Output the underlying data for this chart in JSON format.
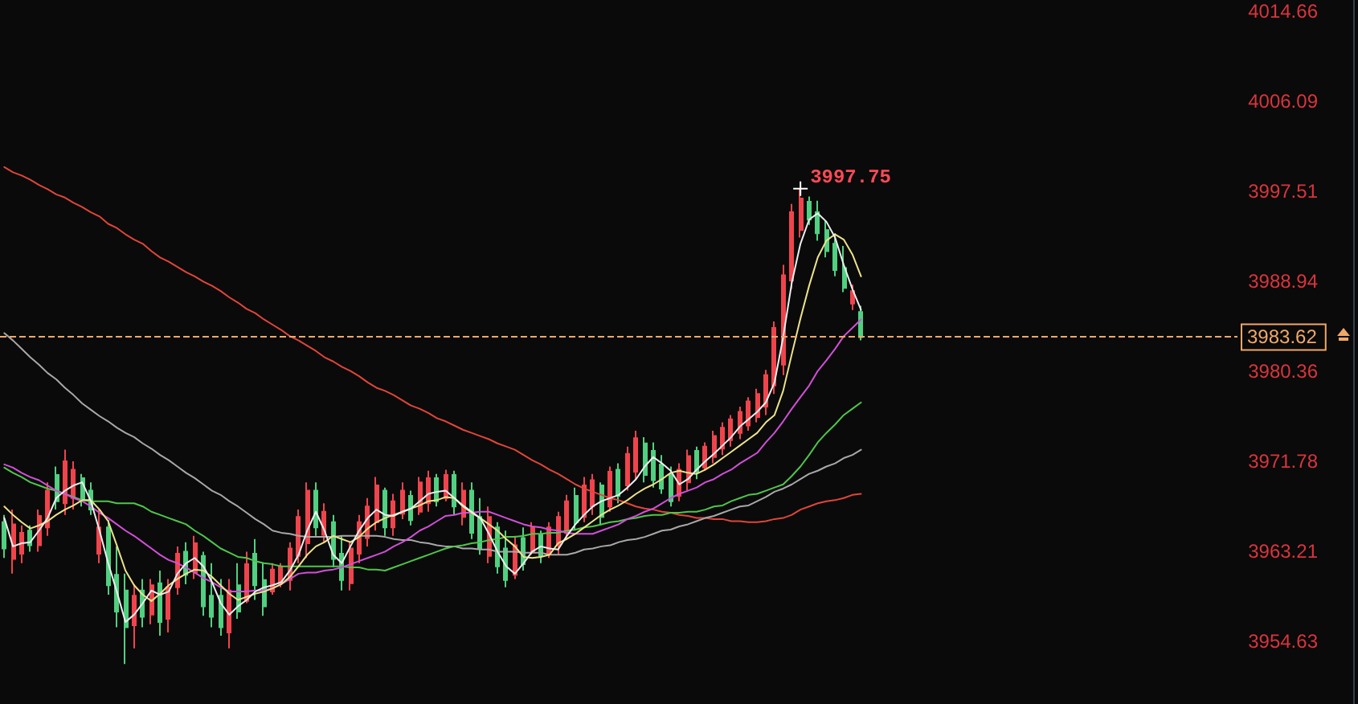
{
  "chart_data": {
    "type": "candlestick",
    "categories": [
      null,
      null,
      null,
      null,
      null,
      null,
      null,
      null,
      null,
      null,
      null,
      null,
      null,
      null,
      null,
      null,
      null,
      null,
      null,
      null,
      null,
      null,
      null,
      null,
      null,
      null,
      null,
      null,
      null,
      null,
      null,
      null,
      null,
      null,
      null,
      null,
      null,
      null,
      null,
      null,
      null,
      null,
      null,
      null,
      null,
      null,
      null,
      null,
      null,
      null,
      null,
      null,
      null,
      null,
      null,
      null,
      null,
      null,
      null,
      null,
      null,
      null,
      null,
      null,
      null,
      null,
      null,
      null,
      null,
      null,
      null,
      null,
      null,
      null,
      null,
      null,
      null,
      null,
      null,
      null,
      null,
      null,
      null,
      null,
      null,
      null,
      null,
      null,
      null,
      null,
      null,
      null,
      null,
      null,
      null,
      null,
      null,
      null,
      null,
      null,
      null,
      null,
      null,
      null,
      null,
      null,
      null,
      null,
      null,
      null,
      null,
      null,
      null,
      null,
      null,
      null,
      null,
      null,
      null,
      null,
      null,
      null,
      null,
      null,
      null,
      null,
      null,
      null,
      null,
      null,
      null,
      null,
      null,
      null,
      null,
      null,
      null,
      null,
      null,
      null,
      null,
      null,
      null
    ],
    "ohlc": [
      [
        3966.0,
        3966.7,
        3962.6,
        3963.5
      ],
      [
        3962.5,
        3967.2,
        3961.1,
        3965.8
      ],
      [
        3963.0,
        3965.7,
        3962.1,
        3965.0
      ],
      [
        3965.2,
        3965.7,
        3963.2,
        3963.8
      ],
      [
        3963.8,
        3967.2,
        3963.2,
        3966.6
      ],
      [
        3965.5,
        3969.8,
        3964.7,
        3969.0
      ],
      [
        3970.5,
        3971.3,
        3967.2,
        3968.0
      ],
      [
        3967.8,
        3972.9,
        3966.7,
        3971.8
      ],
      [
        3968.3,
        3971.8,
        3967.2,
        3971.0
      ],
      [
        3970.2,
        3970.6,
        3967.5,
        3968.2
      ],
      [
        3969.0,
        3969.8,
        3966.7,
        3967.2
      ],
      [
        3963.0,
        3967.2,
        3962.1,
        3965.5
      ],
      [
        3965.5,
        3966.2,
        3959.1,
        3960.0
      ],
      [
        3961.0,
        3963.7,
        3956.0,
        3957.5
      ],
      [
        3959.5,
        3961.1,
        3952.5,
        3956.0
      ],
      [
        3956.2,
        3960.1,
        3954.0,
        3959.0
      ],
      [
        3959.5,
        3960.6,
        3956.0,
        3957.0
      ],
      [
        3957.2,
        3960.6,
        3956.3,
        3960.0
      ],
      [
        3960.2,
        3961.4,
        3955.2,
        3956.5
      ],
      [
        3956.8,
        3960.6,
        3955.5,
        3959.8
      ],
      [
        3959.8,
        3963.7,
        3959.1,
        3963.0
      ],
      [
        3963.2,
        3964.1,
        3960.1,
        3961.0
      ],
      [
        3961.2,
        3964.7,
        3960.6,
        3964.0
      ],
      [
        3962.8,
        3963.2,
        3957.1,
        3958.0
      ],
      [
        3959.0,
        3962.1,
        3956.0,
        3957.0
      ],
      [
        3959.0,
        3960.6,
        3955.2,
        3956.0
      ],
      [
        3955.5,
        3960.6,
        3954.0,
        3959.5
      ],
      [
        3960.0,
        3962.1,
        3956.8,
        3957.5
      ],
      [
        3958.5,
        3963.2,
        3958.3,
        3962.0
      ],
      [
        3963.0,
        3964.4,
        3958.6,
        3960.0
      ],
      [
        3960.5,
        3962.1,
        3957.1,
        3958.0
      ],
      [
        3959.4,
        3962.1,
        3959.1,
        3961.5
      ],
      [
        3960.2,
        3962.1,
        3959.8,
        3961.8
      ],
      [
        3960.5,
        3964.1,
        3959.5,
        3963.5
      ],
      [
        3962.8,
        3967.2,
        3962.1,
        3966.5
      ],
      [
        3964.0,
        3969.8,
        3962.6,
        3969.0
      ],
      [
        3969.0,
        3969.8,
        3964.7,
        3965.5
      ],
      [
        3964.8,
        3967.8,
        3964.1,
        3967.0
      ],
      [
        3966.0,
        3966.7,
        3961.7,
        3962.5
      ],
      [
        3963.0,
        3964.7,
        3959.5,
        3960.5
      ],
      [
        3960.2,
        3964.1,
        3959.5,
        3963.5
      ],
      [
        3963.0,
        3966.7,
        3962.1,
        3966.0
      ],
      [
        3964.5,
        3968.3,
        3963.7,
        3967.5
      ],
      [
        3966.0,
        3970.3,
        3965.2,
        3969.5
      ],
      [
        3969.0,
        3969.3,
        3964.7,
        3965.5
      ],
      [
        3965.5,
        3968.7,
        3964.7,
        3968.0
      ],
      [
        3966.8,
        3969.8,
        3966.3,
        3969.0
      ],
      [
        3968.5,
        3969.0,
        3965.7,
        3966.2
      ],
      [
        3967.0,
        3970.3,
        3966.7,
        3969.8
      ],
      [
        3967.8,
        3970.9,
        3967.0,
        3970.2
      ],
      [
        3970.2,
        3970.6,
        3967.5,
        3968.0
      ],
      [
        3968.3,
        3971.0,
        3968.0,
        3970.5
      ],
      [
        3970.5,
        3970.9,
        3966.7,
        3967.5
      ],
      [
        3966.5,
        3969.8,
        3965.7,
        3969.0
      ],
      [
        3969.0,
        3969.8,
        3964.4,
        3965.0
      ],
      [
        3966.5,
        3968.3,
        3962.9,
        3963.5
      ],
      [
        3962.8,
        3967.5,
        3962.1,
        3966.5
      ],
      [
        3965.5,
        3966.0,
        3961.1,
        3961.8
      ],
      [
        3963.5,
        3965.2,
        3959.8,
        3960.5
      ],
      [
        3961.0,
        3964.7,
        3960.6,
        3963.8
      ],
      [
        3964.5,
        3965.5,
        3961.4,
        3962.0
      ],
      [
        3963.2,
        3966.0,
        3962.9,
        3965.5
      ],
      [
        3964.8,
        3965.2,
        3962.1,
        3962.8
      ],
      [
        3963.0,
        3966.0,
        3962.6,
        3965.5
      ],
      [
        3963.8,
        3967.0,
        3962.9,
        3966.5
      ],
      [
        3965.0,
        3968.6,
        3964.4,
        3968.0
      ],
      [
        3968.5,
        3969.3,
        3965.2,
        3966.0
      ],
      [
        3966.5,
        3970.3,
        3966.0,
        3969.5
      ],
      [
        3967.5,
        3970.6,
        3966.7,
        3970.0
      ],
      [
        3969.5,
        3969.8,
        3965.7,
        3966.5
      ],
      [
        3967.5,
        3971.3,
        3967.0,
        3970.8
      ],
      [
        3971.0,
        3971.6,
        3967.8,
        3968.5
      ],
      [
        3969.5,
        3973.2,
        3969.0,
        3972.5
      ],
      [
        3970.8,
        3974.7,
        3970.1,
        3974.0
      ],
      [
        3973.5,
        3974.1,
        3969.8,
        3970.5
      ],
      [
        3972.8,
        3973.6,
        3969.3,
        3970.0
      ],
      [
        3971.5,
        3972.4,
        3968.7,
        3969.2
      ],
      [
        3970.5,
        3971.3,
        3967.5,
        3968.0
      ],
      [
        3968.5,
        3971.6,
        3968.0,
        3971.0
      ],
      [
        3969.8,
        3972.9,
        3969.0,
        3972.3
      ],
      [
        3972.8,
        3973.2,
        3970.1,
        3970.8
      ],
      [
        3971.2,
        3973.6,
        3970.9,
        3973.2
      ],
      [
        3972.2,
        3974.7,
        3971.6,
        3974.2
      ],
      [
        3973.0,
        3975.5,
        3972.4,
        3975.0
      ],
      [
        3973.8,
        3976.2,
        3973.2,
        3975.8
      ],
      [
        3974.5,
        3977.0,
        3973.9,
        3976.5
      ],
      [
        3975.2,
        3977.9,
        3974.7,
        3977.5
      ],
      [
        3976.0,
        3978.7,
        3975.5,
        3978.2
      ],
      [
        3977.0,
        3980.5,
        3976.2,
        3980.0
      ],
      [
        3979.0,
        3985.1,
        3978.2,
        3984.5
      ],
      [
        3981.0,
        3990.5,
        3980.0,
        3989.5
      ],
      [
        3989.0,
        3996.3,
        3988.2,
        3995.5
      ],
      [
        3993.8,
        3997.75,
        3993.1,
        3996.8
      ],
      [
        3996.5,
        3997.0,
        3994.3,
        3994.8
      ],
      [
        3995.5,
        3996.6,
        3992.8,
        3993.5
      ],
      [
        3993.8,
        3994.7,
        3991.2,
        3991.8
      ],
      [
        3992.5,
        3993.5,
        3989.4,
        3990.0
      ],
      [
        3990.2,
        3992.3,
        3987.9,
        3988.3
      ],
      [
        3986.8,
        3988.6,
        3986.2,
        3988.0
      ],
      [
        3986.0,
        3986.6,
        3983.3,
        3983.62
      ],
      null,
      null,
      null,
      null,
      null,
      null,
      null,
      null,
      null,
      null,
      null,
      null,
      null,
      null,
      null,
      null,
      null,
      null,
      null,
      null,
      null,
      null,
      null,
      null,
      null,
      null,
      null,
      null,
      null,
      null,
      null,
      null,
      null,
      null,
      null,
      null,
      null,
      null,
      null,
      null,
      null,
      null,
      null
    ],
    "colors": [
      "#50d080",
      "#f0444c",
      "#f0444c",
      "#50d080",
      "#f0444c",
      "#f0444c",
      "#50d080",
      "#f0444c",
      "#f0444c",
      "#50d080",
      "#50d080",
      "#f0444c",
      "#50d080",
      "#50d080",
      "#50d080",
      "#f0444c",
      "#50d080",
      "#f0444c",
      "#50d080",
      "#f0444c",
      "#f0444c",
      "#50d080",
      "#f0444c",
      "#50d080",
      "#50d080",
      "#50d080",
      "#f0444c",
      "#50d080",
      "#f0444c",
      "#50d080",
      "#50d080",
      "#f0444c",
      "#f0444c",
      "#f0444c",
      "#f0444c",
      "#f0444c",
      "#50d080",
      "#f0444c",
      "#50d080",
      "#50d080",
      "#f0444c",
      "#f0444c",
      "#f0444c",
      "#f0444c",
      "#50d080",
      "#f0444c",
      "#f0444c",
      "#50d080",
      "#f0444c",
      "#f0444c",
      "#50d080",
      "#f0444c",
      "#50d080",
      "#f0444c",
      "#50d080",
      "#50d080",
      "#f0444c",
      "#50d080",
      "#50d080",
      "#f0444c",
      "#50d080",
      "#f0444c",
      "#50d080",
      "#f0444c",
      "#f0444c",
      "#f0444c",
      "#50d080",
      "#f0444c",
      "#f0444c",
      "#50d080",
      "#f0444c",
      "#50d080",
      "#f0444c",
      "#f0444c",
      "#50d080",
      "#50d080",
      "#50d080",
      "#50d080",
      "#f0444c",
      "#f0444c",
      "#50d080",
      "#f0444c",
      "#f0444c",
      "#f0444c",
      "#f0444c",
      "#f0444c",
      "#f0444c",
      "#f0444c",
      "#f0444c",
      "#f0444c",
      "#f0444c",
      "#f0444c",
      "#f0444c",
      "#50d080",
      "#50d080",
      "#50d080",
      "#50d080",
      "#50d080",
      "#f0444c",
      "#50d080",
      null,
      null,
      null,
      null,
      null,
      null,
      null,
      null,
      null,
      null,
      null,
      null,
      null,
      null,
      null,
      null,
      null,
      null,
      null,
      null,
      null,
      null,
      null,
      null,
      null,
      null,
      null,
      null,
      null,
      null,
      null,
      null,
      null,
      null,
      null,
      null,
      null,
      null,
      null,
      null,
      null,
      null,
      null
    ],
    "series": [
      {
        "type": "line",
        "color": "#e0453a",
        "values": [
          3999.8,
          3999.3,
          3999.0,
          3998.6,
          3998.1,
          3997.7,
          3997.2,
          3996.9,
          3996.4,
          3996.0,
          3995.5,
          3995.1,
          3994.4,
          3994.0,
          3993.4,
          3992.9,
          3992.5,
          3991.8,
          3991.2,
          3990.8,
          3990.3,
          3989.8,
          3989.4,
          3988.9,
          3988.5,
          3988.0,
          3987.4,
          3986.9,
          3986.3,
          3985.9,
          3985.3,
          3984.8,
          3984.3,
          3983.7,
          3983.3,
          3982.8,
          3982.3,
          3981.7,
          3981.3,
          3980.8,
          3980.4,
          3979.9,
          3979.3,
          3978.8,
          3978.5,
          3978.1,
          3977.6,
          3977.1,
          3976.8,
          3976.4,
          3975.9,
          3975.6,
          3975.2,
          3974.8,
          3974.5,
          3974.2,
          3973.9,
          3973.5,
          3973.2,
          3972.9,
          3972.4,
          3971.9,
          3971.5,
          3971.0,
          3970.6,
          3970.1,
          3969.6,
          3969.2,
          3968.9,
          3968.6,
          3968.3,
          3968.1,
          3967.8,
          3967.5,
          3967.3,
          3967.2,
          3967.0,
          3966.9,
          3966.7,
          3966.6,
          3966.4,
          3966.4,
          3966.3,
          3966.3,
          3966.1,
          3966.1,
          3966.0,
          3966.0,
          3966.1,
          3966.3,
          3966.4,
          3966.7,
          3967.2,
          3967.5,
          3967.8,
          3968.0,
          3968.1,
          3968.3,
          3968.6,
          3968.7,
          null,
          null,
          null,
          null,
          null,
          null,
          null,
          null,
          null,
          null,
          null,
          null,
          null,
          null,
          null,
          null,
          null,
          null,
          null,
          null,
          null,
          null,
          null,
          null,
          null,
          null,
          null,
          null,
          null,
          null,
          null,
          null,
          null,
          null,
          null,
          null,
          null,
          null,
          null,
          null,
          null,
          null,
          null
        ]
      },
      {
        "type": "line",
        "color": "#a8a8a8",
        "values": [
          3984.0,
          3983.3,
          3982.5,
          3981.7,
          3981.0,
          3980.2,
          3979.6,
          3978.8,
          3978.1,
          3977.3,
          3976.7,
          3976.1,
          3975.6,
          3975.0,
          3974.5,
          3974.1,
          3973.5,
          3973.0,
          3972.4,
          3971.9,
          3971.3,
          3970.7,
          3970.2,
          3969.6,
          3969.0,
          3968.6,
          3968.0,
          3967.5,
          3966.9,
          3966.3,
          3965.8,
          3965.2,
          3965.0,
          3964.9,
          3964.7,
          3964.6,
          3964.6,
          3964.6,
          3964.6,
          3964.7,
          3964.7,
          3964.7,
          3964.7,
          3964.7,
          3964.6,
          3964.4,
          3964.3,
          3964.3,
          3964.1,
          3964.0,
          3963.8,
          3963.7,
          3963.7,
          3963.5,
          3963.5,
          3963.4,
          3963.4,
          3963.2,
          3963.2,
          3963.2,
          3963.1,
          3963.1,
          3963.1,
          3962.9,
          3962.9,
          3962.9,
          3963.1,
          3963.4,
          3963.5,
          3963.7,
          3963.8,
          3964.1,
          3964.3,
          3964.4,
          3964.6,
          3964.9,
          3965.2,
          3965.3,
          3965.6,
          3965.8,
          3966.1,
          3966.4,
          3966.6,
          3966.9,
          3967.2,
          3967.5,
          3967.6,
          3968.0,
          3968.4,
          3968.9,
          3969.2,
          3969.6,
          3970.1,
          3970.6,
          3970.9,
          3971.3,
          3971.6,
          3972.1,
          3972.4,
          3972.9,
          null,
          null,
          null,
          null,
          null,
          null,
          null,
          null,
          null,
          null,
          null,
          null,
          null,
          null,
          null,
          null,
          null,
          null,
          null,
          null,
          null,
          null,
          null,
          null,
          null,
          null,
          null,
          null,
          null,
          null,
          null,
          null,
          null,
          null,
          null,
          null,
          null,
          null,
          null,
          null,
          null,
          null,
          null
        ]
      },
      {
        "type": "line",
        "color": "#4fc64a",
        "values": [
          3971.2,
          3970.7,
          3970.3,
          3969.8,
          3969.5,
          3969.2,
          3969.0,
          3968.7,
          3968.4,
          3968.1,
          3968.0,
          3968.0,
          3968.0,
          3967.8,
          3967.8,
          3967.8,
          3967.5,
          3967.0,
          3966.7,
          3966.4,
          3966.1,
          3965.8,
          3965.2,
          3964.7,
          3964.1,
          3963.5,
          3963.1,
          3962.7,
          3962.6,
          3962.3,
          3962.1,
          3962.0,
          3961.8,
          3961.8,
          3961.8,
          3961.8,
          3961.8,
          3961.8,
          3961.8,
          3961.8,
          3961.7,
          3961.7,
          3961.5,
          3961.5,
          3961.4,
          3961.7,
          3962.0,
          3962.3,
          3962.6,
          3962.9,
          3963.2,
          3963.5,
          3963.7,
          3963.8,
          3964.0,
          3964.1,
          3964.3,
          3964.4,
          3964.6,
          3964.6,
          3964.7,
          3964.9,
          3964.9,
          3965.0,
          3965.0,
          3965.2,
          3965.3,
          3965.5,
          3965.6,
          3965.8,
          3966.0,
          3966.1,
          3966.3,
          3966.4,
          3966.6,
          3966.7,
          3966.7,
          3966.9,
          3966.9,
          3967.0,
          3967.0,
          3967.2,
          3967.5,
          3967.6,
          3968.0,
          3968.3,
          3968.6,
          3968.7,
          3969.0,
          3969.3,
          3969.6,
          3970.4,
          3971.3,
          3972.4,
          3973.6,
          3974.5,
          3975.3,
          3976.2,
          3976.8,
          3977.4,
          null,
          null,
          null,
          null,
          null,
          null,
          null,
          null,
          null,
          null,
          null,
          null,
          null,
          null,
          null,
          null,
          null,
          null,
          null,
          null,
          null,
          null,
          null,
          null,
          null,
          null,
          null,
          null,
          null,
          null,
          null,
          null,
          null,
          null,
          null,
          null,
          null,
          null,
          null,
          null,
          null,
          null,
          null
        ]
      },
      {
        "type": "line",
        "color": "#d24fd8",
        "values": [
          3971.5,
          3971.2,
          3970.7,
          3970.3,
          3970.0,
          3969.5,
          3969.0,
          3968.7,
          3968.3,
          3968.0,
          3967.5,
          3966.9,
          3966.4,
          3965.8,
          3965.2,
          3964.7,
          3964.1,
          3963.5,
          3962.9,
          3962.4,
          3962.1,
          3961.7,
          3961.2,
          3960.7,
          3960.3,
          3959.8,
          3959.4,
          3959.4,
          3959.4,
          3959.5,
          3959.5,
          3959.7,
          3960.1,
          3960.6,
          3961.1,
          3961.2,
          3961.2,
          3961.4,
          3961.5,
          3961.7,
          3962.0,
          3962.3,
          3962.6,
          3962.9,
          3963.2,
          3963.7,
          3964.1,
          3964.6,
          3965.2,
          3965.6,
          3966.1,
          3966.6,
          3966.7,
          3966.9,
          3966.9,
          3967.0,
          3967.0,
          3966.7,
          3966.4,
          3966.1,
          3965.8,
          3965.6,
          3965.5,
          3965.3,
          3965.2,
          3965.0,
          3964.9,
          3964.9,
          3964.9,
          3965.2,
          3965.5,
          3965.8,
          3966.3,
          3966.6,
          3967.0,
          3967.3,
          3967.8,
          3968.3,
          3968.7,
          3969.0,
          3969.3,
          3969.8,
          3970.1,
          3970.6,
          3971.0,
          3971.6,
          3972.1,
          3972.6,
          3973.6,
          3974.5,
          3975.6,
          3976.8,
          3977.9,
          3979.0,
          3980.4,
          3981.4,
          3982.5,
          3983.7,
          3984.5,
          3985.3,
          null,
          null,
          null,
          null,
          null,
          null,
          null,
          null,
          null,
          null,
          null,
          null,
          null,
          null,
          null,
          null,
          null,
          null,
          null,
          null,
          null,
          null,
          null,
          null,
          null,
          null,
          null,
          null,
          null,
          null,
          null,
          null,
          null,
          null,
          null,
          null,
          null,
          null,
          null,
          null,
          null,
          null,
          null
        ]
      },
      {
        "type": "line",
        "color": "#ece38a",
        "values": [
          3967.5,
          3966.7,
          3966.0,
          3965.4,
          3965.7,
          3966.1,
          3966.7,
          3967.2,
          3967.6,
          3968.1,
          3968.1,
          3967.2,
          3966.1,
          3963.8,
          3961.4,
          3960.0,
          3959.1,
          3958.5,
          3959.2,
          3960.0,
          3960.6,
          3961.1,
          3961.5,
          3961.4,
          3960.8,
          3960.0,
          3959.2,
          3958.6,
          3958.9,
          3959.2,
          3959.4,
          3959.7,
          3960.1,
          3960.8,
          3961.8,
          3962.9,
          3963.7,
          3964.1,
          3964.7,
          3964.4,
          3964.1,
          3964.6,
          3965.4,
          3966.0,
          3966.4,
          3966.7,
          3967.0,
          3967.3,
          3967.6,
          3968.0,
          3968.1,
          3968.4,
          3968.3,
          3967.5,
          3966.9,
          3966.4,
          3965.8,
          3965.2,
          3964.4,
          3963.7,
          3962.7,
          3962.6,
          3962.7,
          3962.9,
          3964.0,
          3964.4,
          3964.9,
          3965.5,
          3966.1,
          3966.7,
          3967.2,
          3967.6,
          3968.1,
          3968.7,
          3969.2,
          3969.6,
          3970.1,
          3970.7,
          3970.9,
          3970.7,
          3970.6,
          3971.0,
          3971.5,
          3972.1,
          3972.7,
          3973.3,
          3973.9,
          3974.5,
          3975.5,
          3976.2,
          3978.5,
          3982.0,
          3985.4,
          3988.5,
          3991.2,
          3992.8,
          3993.4,
          3992.9,
          3991.5,
          3989.4,
          null,
          null,
          null,
          null,
          null,
          null,
          null,
          null,
          null,
          null,
          null,
          null,
          null,
          null,
          null,
          null,
          null,
          null,
          null,
          null,
          null,
          null,
          null,
          null,
          null,
          null,
          null,
          null,
          null,
          null,
          null,
          null,
          null,
          null,
          null,
          null,
          null,
          null,
          null,
          null,
          null,
          null,
          null
        ]
      },
      {
        "type": "line",
        "color": "#eeeeee",
        "values": [
          3966.4,
          3963.7,
          3964.0,
          3964.1,
          3965.2,
          3966.4,
          3968.3,
          3969.0,
          3969.5,
          3969.8,
          3968.0,
          3965.2,
          3962.1,
          3959.4,
          3956.5,
          3957.2,
          3958.3,
          3959.5,
          3959.1,
          3959.4,
          3961.1,
          3962.1,
          3962.6,
          3961.8,
          3960.3,
          3958.3,
          3957.2,
          3958.0,
          3958.6,
          3959.4,
          3959.8,
          3960.0,
          3960.3,
          3961.4,
          3962.9,
          3965.2,
          3967.0,
          3965.2,
          3962.9,
          3962.1,
          3963.7,
          3965.2,
          3966.4,
          3967.2,
          3966.7,
          3966.6,
          3967.0,
          3967.3,
          3968.0,
          3968.7,
          3968.9,
          3969.0,
          3968.3,
          3967.6,
          3967.0,
          3966.4,
          3964.9,
          3963.2,
          3961.8,
          3961.1,
          3962.1,
          3963.2,
          3963.7,
          3963.5,
          3963.4,
          3964.7,
          3965.8,
          3966.7,
          3967.5,
          3968.0,
          3968.3,
          3968.6,
          3969.3,
          3970.1,
          3971.3,
          3972.2,
          3971.6,
          3970.9,
          3969.6,
          3970.1,
          3971.0,
          3971.8,
          3972.5,
          3973.3,
          3974.1,
          3975.1,
          3975.8,
          3976.5,
          3977.4,
          3979.3,
          3983.6,
          3988.8,
          3992.5,
          3994.8,
          3995.4,
          3994.6,
          3993.1,
          3990.5,
          3988.2,
          3986.2,
          null,
          null,
          null,
          null,
          null,
          null,
          null,
          null,
          null,
          null,
          null,
          null,
          null,
          null,
          null,
          null,
          null,
          null,
          null,
          null,
          null,
          null,
          null,
          null,
          null,
          null,
          null,
          null,
          null,
          null,
          null,
          null,
          null,
          null,
          null,
          null,
          null,
          null,
          null,
          null,
          null,
          null,
          null
        ]
      }
    ],
    "ylim": [
      3948.7,
      4015.7
    ],
    "yticks": [
      4014.66,
      4006.09,
      3997.51,
      3988.94,
      3980.36,
      3971.78,
      3963.21,
      3954.63
    ],
    "tick_labels": "y",
    "ref_lines": [
      {
        "axis": "y",
        "value": 3983.62,
        "label": "3983.62",
        "color": "#f0a868",
        "line_style": "dashed"
      }
    ],
    "annotations": [
      "3997.75"
    ]
  }
}
